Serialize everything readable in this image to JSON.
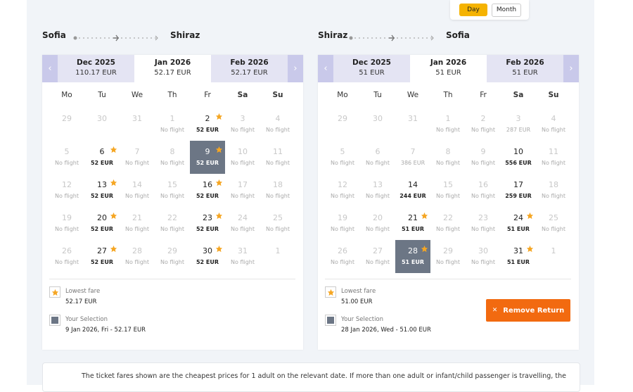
{
  "toggle": {
    "options": [
      "Day",
      "Month"
    ]
  },
  "weekdays": [
    "Mo",
    "Tu",
    "We",
    "Th",
    "Fr",
    "Sa",
    "Su"
  ],
  "panels": [
    {
      "route": {
        "from": "Sofia",
        "to": "Shiraz"
      },
      "months": [
        {
          "name": "Dec 2025",
          "price": "110.17 EUR"
        },
        {
          "name": "Jan 2026",
          "price": "52.17 EUR"
        },
        {
          "name": "Feb 2026",
          "price": "52.17 EUR"
        }
      ],
      "weeks": [
        [
          {
            "day": 29
          },
          {
            "day": 30
          },
          {
            "day": 31
          },
          {
            "day": 1,
            "price": "No flight"
          },
          {
            "day": 2,
            "price": "52 EUR",
            "state": "active",
            "star": true
          },
          {
            "day": 3,
            "price": "No flight"
          },
          {
            "day": 4,
            "price": "No flight"
          }
        ],
        [
          {
            "day": 5,
            "price": "No flight"
          },
          {
            "day": 6,
            "price": "52 EUR",
            "state": "active",
            "star": true
          },
          {
            "day": 7,
            "price": "No flight"
          },
          {
            "day": 8,
            "price": "No flight"
          },
          {
            "day": 9,
            "price": "52 EUR",
            "state": "selected",
            "star": true
          },
          {
            "day": 10,
            "price": "No flight"
          },
          {
            "day": 11,
            "price": "No flight"
          }
        ],
        [
          {
            "day": 12,
            "price": "No flight"
          },
          {
            "day": 13,
            "price": "52 EUR",
            "state": "active",
            "star": true
          },
          {
            "day": 14,
            "price": "No flight"
          },
          {
            "day": 15,
            "price": "No flight"
          },
          {
            "day": 16,
            "price": "52 EUR",
            "state": "active",
            "star": true
          },
          {
            "day": 17,
            "price": "No flight"
          },
          {
            "day": 18,
            "price": "No flight"
          }
        ],
        [
          {
            "day": 19,
            "price": "No flight"
          },
          {
            "day": 20,
            "price": "52 EUR",
            "state": "active",
            "star": true
          },
          {
            "day": 21,
            "price": "No flight"
          },
          {
            "day": 22,
            "price": "No flight"
          },
          {
            "day": 23,
            "price": "52 EUR",
            "state": "active",
            "star": true
          },
          {
            "day": 24,
            "price": "No flight"
          },
          {
            "day": 25,
            "price": "No flight"
          }
        ],
        [
          {
            "day": 26,
            "price": "No flight"
          },
          {
            "day": 27,
            "price": "52 EUR",
            "state": "active",
            "star": true
          },
          {
            "day": 28,
            "price": "No flight"
          },
          {
            "day": 29,
            "price": "No flight"
          },
          {
            "day": 30,
            "price": "52 EUR",
            "state": "active",
            "star": true
          },
          {
            "day": 31,
            "price": "No flight"
          },
          {
            "day": 1
          }
        ]
      ],
      "legend": {
        "lowest_label": "Lowest fare",
        "lowest_value": "52.17 EUR",
        "selection_label": "Your Selection",
        "selection_value": "9 Jan 2026, Fri - 52.17 EUR"
      }
    },
    {
      "route": {
        "from": "Shiraz",
        "to": "Sofia"
      },
      "months": [
        {
          "name": "Dec 2025",
          "price": "51 EUR"
        },
        {
          "name": "Jan 2026",
          "price": "51 EUR"
        },
        {
          "name": "Feb 2026",
          "price": "51 EUR"
        }
      ],
      "weeks": [
        [
          {
            "day": 29
          },
          {
            "day": 30
          },
          {
            "day": 31
          },
          {
            "day": 1,
            "price": "No flight"
          },
          {
            "day": 2,
            "price": "No flight"
          },
          {
            "day": 3,
            "price": "287 EUR"
          },
          {
            "day": 4,
            "price": "No flight"
          }
        ],
        [
          {
            "day": 5,
            "price": "No flight"
          },
          {
            "day": 6,
            "price": "No flight"
          },
          {
            "day": 7,
            "price": "386 EUR"
          },
          {
            "day": 8,
            "price": "No flight"
          },
          {
            "day": 9,
            "price": "No flight"
          },
          {
            "day": 10,
            "price": "556 EUR",
            "state": "active"
          },
          {
            "day": 11,
            "price": "No flight"
          }
        ],
        [
          {
            "day": 12,
            "price": "No flight"
          },
          {
            "day": 13,
            "price": "No flight"
          },
          {
            "day": 14,
            "price": "244 EUR",
            "state": "active"
          },
          {
            "day": 15,
            "price": "No flight"
          },
          {
            "day": 16,
            "price": "No flight"
          },
          {
            "day": 17,
            "price": "259 EUR",
            "state": "active"
          },
          {
            "day": 18,
            "price": "No flight"
          }
        ],
        [
          {
            "day": 19,
            "price": "No flight"
          },
          {
            "day": 20,
            "price": "No flight"
          },
          {
            "day": 21,
            "price": "51 EUR",
            "state": "active",
            "star": true
          },
          {
            "day": 22,
            "price": "No flight"
          },
          {
            "day": 23,
            "price": "No flight"
          },
          {
            "day": 24,
            "price": "51 EUR",
            "state": "active",
            "star": true
          },
          {
            "day": 25,
            "price": "No flight"
          }
        ],
        [
          {
            "day": 26,
            "price": "No flight"
          },
          {
            "day": 27,
            "price": "No flight"
          },
          {
            "day": 28,
            "price": "51 EUR",
            "state": "selected",
            "star": true
          },
          {
            "day": 29,
            "price": "No flight"
          },
          {
            "day": 30,
            "price": "No flight"
          },
          {
            "day": 31,
            "price": "51 EUR",
            "state": "active",
            "star": true
          },
          {
            "day": 1
          }
        ]
      ],
      "legend": {
        "lowest_label": "Lowest fare",
        "lowest_value": "51.00 EUR",
        "selection_label": "Your Selection",
        "selection_value": "28 Jan 2026, Wed - 51.00 EUR"
      },
      "button": "Remove Return"
    }
  ],
  "note": "The ticket fares shown are the cheapest prices for 1 adult on the relevant date. If more than one adult or infant/child passenger is travelling, the"
}
